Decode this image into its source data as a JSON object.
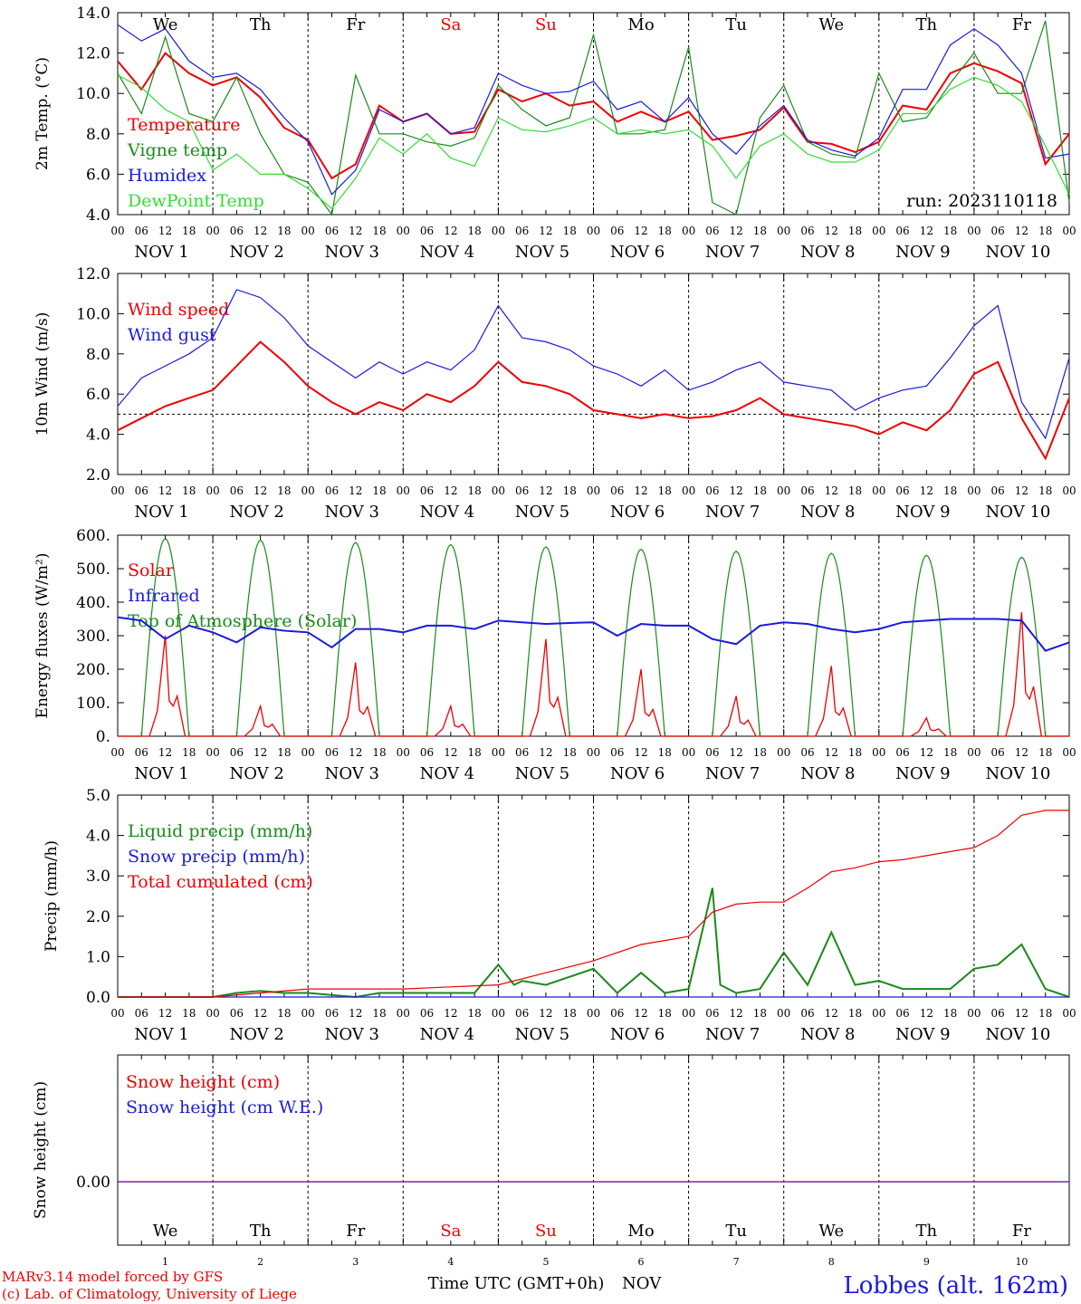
{
  "footer": {
    "model_line": "MARv3.14 model forced by GFS",
    "lab_line": "(c) Lab. of Climatology, University of Liege",
    "time_axis": "Time UTC (GMT+0h)",
    "time_axis_month": "NOV",
    "station": "Lobbes (alt. 162m)"
  },
  "run_label": "run: 2023110118",
  "colors": {
    "red": "#ee0000",
    "dark_green": "#1a8a1a",
    "blue": "#1a1add",
    "light_green": "#33dd33",
    "purple": "#7a2a9a"
  },
  "days": [
    {
      "dow": "We",
      "day": "1",
      "weekend": false
    },
    {
      "dow": "Th",
      "day": "2",
      "weekend": false
    },
    {
      "dow": "Fr",
      "day": "3",
      "weekend": false
    },
    {
      "dow": "Sa",
      "day": "4",
      "weekend": true
    },
    {
      "dow": "Su",
      "day": "5",
      "weekend": true
    },
    {
      "dow": "Mo",
      "day": "6",
      "weekend": false
    },
    {
      "dow": "Tu",
      "day": "7",
      "weekend": false
    },
    {
      "dow": "We",
      "day": "8",
      "weekend": false
    },
    {
      "dow": "Th",
      "day": "9",
      "weekend": false
    },
    {
      "dow": "Fr",
      "day": "10",
      "weekend": false
    }
  ],
  "hour_ticks": [
    "00",
    "06",
    "12",
    "18"
  ],
  "month_label": "NOV",
  "chart_data": [
    {
      "type": "line",
      "ylabel": "2m Temp. (°C)",
      "ylim": [
        4.0,
        14.0
      ],
      "yticks": [
        "4.0",
        "6.0",
        "8.0",
        "10.0",
        "12.0",
        "14.0"
      ],
      "x_unit": "hours since NOV 1 00 UTC",
      "series": [
        {
          "name": "Temperature",
          "color": "#ee0000",
          "x": [
            0,
            6,
            12,
            18,
            24,
            30,
            36,
            42,
            48,
            54,
            60,
            66,
            72,
            78,
            84,
            90,
            96,
            102,
            108,
            114,
            120,
            126,
            132,
            138,
            144,
            150,
            156,
            162,
            168,
            174,
            180,
            186,
            192,
            198,
            204,
            210,
            216,
            222,
            228,
            234,
            240
          ],
          "y": [
            11.6,
            10.2,
            12.0,
            11.0,
            10.4,
            10.8,
            9.8,
            8.3,
            7.7,
            5.8,
            6.5,
            9.4,
            8.6,
            9.0,
            8.0,
            8.1,
            10.2,
            9.6,
            10.0,
            9.4,
            9.6,
            8.6,
            9.1,
            8.6,
            9.1,
            7.7,
            7.9,
            8.2,
            9.3,
            7.6,
            7.5,
            7.1,
            7.6,
            9.4,
            9.2,
            11.0,
            11.5,
            11.1,
            10.5,
            6.5,
            8.0
          ]
        },
        {
          "name": "Vigne temp",
          "color": "#1a8a1a",
          "x": [
            0,
            6,
            12,
            18,
            24,
            30,
            36,
            42,
            48,
            54,
            60,
            66,
            72,
            78,
            84,
            90,
            96,
            102,
            108,
            114,
            120,
            126,
            132,
            138,
            144,
            150,
            156,
            162,
            168,
            174,
            180,
            186,
            192,
            198,
            204,
            210,
            216,
            222,
            228,
            234,
            240
          ],
          "y": [
            11.0,
            9.0,
            12.8,
            9.0,
            8.6,
            10.8,
            8.0,
            6.0,
            5.6,
            4.0,
            10.9,
            8.0,
            8.0,
            7.6,
            7.4,
            7.8,
            10.4,
            9.2,
            8.4,
            8.8,
            12.9,
            8.0,
            8.0,
            8.2,
            12.3,
            4.6,
            4.0,
            8.8,
            10.4,
            7.6,
            7.0,
            6.8,
            11.0,
            8.6,
            8.8,
            10.5,
            12.0,
            10.0,
            10.0,
            13.6,
            4.6
          ]
        },
        {
          "name": "Humidex",
          "color": "#1a1add",
          "x": [
            0,
            6,
            12,
            18,
            24,
            30,
            36,
            42,
            48,
            54,
            60,
            66,
            72,
            78,
            84,
            90,
            96,
            102,
            108,
            114,
            120,
            126,
            132,
            138,
            144,
            150,
            156,
            162,
            168,
            174,
            180,
            186,
            192,
            198,
            204,
            210,
            216,
            222,
            228,
            234,
            240
          ],
          "y": [
            13.4,
            12.6,
            13.2,
            11.6,
            10.8,
            11.0,
            10.2,
            8.8,
            7.6,
            5.0,
            6.2,
            9.2,
            8.6,
            9.0,
            8.0,
            8.3,
            11.0,
            10.4,
            10.0,
            10.1,
            10.6,
            9.2,
            9.6,
            8.6,
            9.8,
            8.0,
            7.0,
            8.4,
            9.4,
            7.7,
            7.2,
            6.9,
            7.8,
            10.2,
            10.2,
            12.4,
            13.2,
            12.4,
            11.0,
            6.8,
            7.0
          ]
        },
        {
          "name": "DewPoint Temp",
          "color": "#33dd33",
          "x": [
            0,
            6,
            12,
            18,
            24,
            30,
            36,
            42,
            48,
            54,
            60,
            66,
            72,
            78,
            84,
            90,
            96,
            102,
            108,
            114,
            120,
            126,
            132,
            138,
            144,
            150,
            156,
            162,
            168,
            174,
            180,
            186,
            192,
            198,
            204,
            210,
            216,
            222,
            228,
            234,
            240
          ],
          "y": [
            10.9,
            10.3,
            9.2,
            8.6,
            6.2,
            7.0,
            6.0,
            6.0,
            5.3,
            4.3,
            5.8,
            7.8,
            7.0,
            8.0,
            6.8,
            6.4,
            8.8,
            8.2,
            8.1,
            8.4,
            8.8,
            8.0,
            8.2,
            8.0,
            8.2,
            7.4,
            5.8,
            7.4,
            8.0,
            7.0,
            6.6,
            6.6,
            7.2,
            9.0,
            9.0,
            10.2,
            10.8,
            10.4,
            9.6,
            7.4,
            5.0
          ]
        }
      ]
    },
    {
      "type": "line",
      "ylabel": "10m Wind (m/s)",
      "ylim": [
        2.0,
        12.0
      ],
      "yticks": [
        "2.0",
        "4.0",
        "6.0",
        "8.0",
        "10.0",
        "12.0"
      ],
      "reference_line": 5.0,
      "series": [
        {
          "name": "Wind speed",
          "color": "#ee0000",
          "x": [
            0,
            6,
            12,
            18,
            24,
            30,
            36,
            42,
            48,
            54,
            60,
            66,
            72,
            78,
            84,
            90,
            96,
            102,
            108,
            114,
            120,
            126,
            132,
            138,
            144,
            150,
            156,
            162,
            168,
            174,
            180,
            186,
            192,
            198,
            204,
            210,
            216,
            222,
            228,
            234,
            240
          ],
          "y": [
            4.2,
            4.8,
            5.4,
            5.8,
            6.2,
            7.4,
            8.6,
            7.6,
            6.4,
            5.6,
            5.0,
            5.6,
            5.2,
            6.0,
            5.6,
            6.4,
            7.6,
            6.6,
            6.4,
            6.0,
            5.2,
            5.0,
            4.8,
            5.0,
            4.8,
            4.9,
            5.2,
            5.8,
            5.0,
            4.8,
            4.6,
            4.4,
            4.0,
            4.6,
            4.2,
            5.2,
            7.0,
            7.6,
            4.8,
            2.8,
            5.8
          ]
        },
        {
          "name": "Wind gust",
          "color": "#1a1add",
          "x": [
            0,
            6,
            12,
            18,
            24,
            30,
            36,
            42,
            48,
            54,
            60,
            66,
            72,
            78,
            84,
            90,
            96,
            102,
            108,
            114,
            120,
            126,
            132,
            138,
            144,
            150,
            156,
            162,
            168,
            174,
            180,
            186,
            192,
            198,
            204,
            210,
            216,
            222,
            228,
            234,
            240
          ],
          "y": [
            5.4,
            6.8,
            7.4,
            8.0,
            8.8,
            11.2,
            10.8,
            9.8,
            8.4,
            7.6,
            6.8,
            7.6,
            7.0,
            7.6,
            7.2,
            8.2,
            10.4,
            8.8,
            8.6,
            8.2,
            7.4,
            7.0,
            6.4,
            7.2,
            6.2,
            6.6,
            7.2,
            7.6,
            6.6,
            6.4,
            6.2,
            5.2,
            5.8,
            6.2,
            6.4,
            7.8,
            9.4,
            10.4,
            5.6,
            3.8,
            7.8
          ]
        }
      ]
    },
    {
      "type": "line",
      "ylabel": "Energy fluxes (W/m²)",
      "ylim": [
        0,
        600
      ],
      "yticks": [
        "0.",
        "100.",
        "200.",
        "300.",
        "400.",
        "500.",
        "600."
      ],
      "toa_peaks": [
        590,
        585,
        578,
        572,
        565,
        558,
        552,
        546,
        540,
        534
      ],
      "solar_peaks": [
        300,
        90,
        220,
        90,
        290,
        200,
        120,
        210,
        55,
        370
      ],
      "infrared_x": [
        0,
        6,
        12,
        18,
        24,
        30,
        36,
        42,
        48,
        54,
        60,
        66,
        72,
        78,
        84,
        90,
        96,
        102,
        108,
        114,
        120,
        126,
        132,
        138,
        144,
        150,
        156,
        162,
        168,
        174,
        180,
        186,
        192,
        198,
        204,
        210,
        216,
        222,
        228,
        234,
        240
      ],
      "infrared_y": [
        355,
        345,
        290,
        330,
        310,
        280,
        325,
        315,
        310,
        265,
        320,
        320,
        310,
        330,
        330,
        320,
        345,
        340,
        335,
        338,
        340,
        300,
        335,
        330,
        330,
        290,
        275,
        330,
        340,
        335,
        320,
        310,
        320,
        340,
        345,
        350,
        350,
        350,
        345,
        255,
        280
      ],
      "series": [
        {
          "name": "Solar",
          "color": "#ee0000"
        },
        {
          "name": "Infrared",
          "color": "#1a1add"
        },
        {
          "name": "Top of Atmosphere (Solar)",
          "color": "#1a8a1a"
        }
      ]
    },
    {
      "type": "line",
      "ylabel": "Precip (mm/h)",
      "ylim": [
        0.0,
        5.0
      ],
      "yticks": [
        "0.0",
        "1.0",
        "2.0",
        "3.0",
        "4.0",
        "5.0"
      ],
      "series": [
        {
          "name": "Liquid precip (mm/h)",
          "color": "#1a8a1a",
          "x": [
            0,
            12,
            24,
            30,
            36,
            42,
            48,
            60,
            66,
            72,
            78,
            84,
            90,
            96,
            100,
            102,
            108,
            114,
            120,
            126,
            132,
            138,
            144,
            150,
            152,
            156,
            162,
            168,
            174,
            180,
            186,
            192,
            198,
            204,
            210,
            216,
            222,
            228,
            234,
            240
          ],
          "y": [
            0,
            0,
            0,
            0.1,
            0.15,
            0.1,
            0.1,
            0,
            0.1,
            0.1,
            0.1,
            0.1,
            0.1,
            0.8,
            0.3,
            0.4,
            0.3,
            0.5,
            0.7,
            0.1,
            0.6,
            0.1,
            0.2,
            2.7,
            0.3,
            0.1,
            0.2,
            1.1,
            0.3,
            1.6,
            0.3,
            0.4,
            0.2,
            0.2,
            0.2,
            0.7,
            0.8,
            1.3,
            0.2,
            0
          ]
        },
        {
          "name": "Snow precip (mm/h)",
          "color": "#1a1add",
          "x": [
            0,
            240
          ],
          "y": [
            0,
            0
          ]
        },
        {
          "name": "Total cumulated (cm)",
          "color": "#ee0000",
          "x": [
            0,
            24,
            36,
            48,
            60,
            72,
            84,
            96,
            108,
            120,
            132,
            138,
            144,
            150,
            156,
            162,
            168,
            174,
            180,
            186,
            192,
            198,
            204,
            210,
            216,
            222,
            228,
            234,
            240
          ],
          "y": [
            0,
            0,
            0.1,
            0.2,
            0.2,
            0.2,
            0.25,
            0.3,
            0.6,
            0.9,
            1.3,
            1.4,
            1.5,
            2.1,
            2.3,
            2.35,
            2.35,
            2.7,
            3.1,
            3.2,
            3.35,
            3.4,
            3.5,
            3.6,
            3.7,
            4.0,
            4.5,
            4.62,
            4.62
          ]
        }
      ]
    },
    {
      "type": "line",
      "ylabel": "Snow height (cm)",
      "yticks": [
        "0.00"
      ],
      "series": [
        {
          "name": "Snow height (cm)",
          "color": "#ee0000",
          "x": [
            0,
            240
          ],
          "y": [
            0,
            0
          ]
        },
        {
          "name": "Snow height (cm W.E.)",
          "color": "#1a1add",
          "x": [
            0,
            240
          ],
          "y": [
            0,
            0
          ]
        }
      ]
    }
  ]
}
